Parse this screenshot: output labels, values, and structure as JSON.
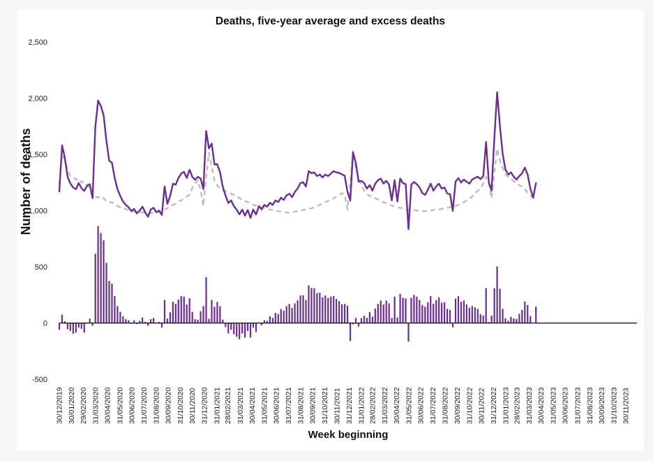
{
  "page": {
    "background_color": "#f5f5f5",
    "panel_color": "#ffffff"
  },
  "chart_data": {
    "type": "line+bar",
    "title": "Deaths, five-year average and excess deaths",
    "xlabel": "Week beginning",
    "ylabel": "Number of deaths",
    "ylim": [
      -500,
      2500
    ],
    "ytick_interval": 500,
    "ytick_labels": [
      "-500",
      "0",
      "500",
      "1,000",
      "1,500",
      "2,000",
      "2,500"
    ],
    "grid": false,
    "legend": "none",
    "axis_line_color": "#000000",
    "x_start_date": "30/12/2019",
    "x_end_label_date": "30/11/2023",
    "weeks_per_point": 1,
    "x_tick_labels": [
      "30/12/2019",
      "30/01/2020",
      "29/02/2020",
      "31/03/2020",
      "30/04/2020",
      "31/05/2020",
      "30/06/2020",
      "31/07/2020",
      "31/08/2020",
      "30/09/2020",
      "31/10/2020",
      "30/11/2020",
      "31/12/2020",
      "31/01/2021",
      "28/02/2021",
      "31/03/2021",
      "30/04/2021",
      "31/05/2021",
      "30/06/2021",
      "31/07/2021",
      "31/08/2021",
      "30/09/2021",
      "31/10/2021",
      "30/11/2021",
      "31/12/2021",
      "31/01/2022",
      "28/02/2022",
      "31/03/2022",
      "30/04/2022",
      "31/05/2022",
      "30/06/2022",
      "31/07/2022",
      "31/08/2022",
      "30/09/2022",
      "31/10/2022",
      "30/11/2022",
      "31/12/2022",
      "31/01/2023",
      "28/02/2023",
      "31/03/2023",
      "30/04/2023",
      "31/05/2023",
      "30/06/2023",
      "31/07/2023",
      "31/08/2023",
      "30/09/2023",
      "31/10/2023",
      "30/11/2023"
    ],
    "series": [
      {
        "name": "Deaths",
        "type": "line",
        "style": "solid",
        "color": "#6b2d8f",
        "values": [
          1170,
          1580,
          1470,
          1300,
          1240,
          1205,
          1190,
          1245,
          1200,
          1175,
          1220,
          1235,
          1110,
          1741,
          1978,
          1930,
          1845,
          1620,
          1445,
          1425,
          1290,
          1190,
          1130,
          1080,
          1050,
          1030,
          995,
          1015,
          975,
          1000,
          1035,
          985,
          945,
          1010,
          1025,
          985,
          1000,
          960,
          1215,
          1060,
          1130,
          1240,
          1230,
          1290,
          1330,
          1345,
          1290,
          1363,
          1300,
          1274,
          1300,
          1285,
          1192,
          1708,
          1553,
          1596,
          1410,
          1413,
          1340,
          1210,
          1133,
          1068,
          1090,
          1040,
          1009,
          966,
          1009,
          955,
          1005,
          935,
          1010,
          965,
          1040,
          1010,
          1050,
          1035,
          1070,
          1050,
          1090,
          1075,
          1115,
          1095,
          1135,
          1150,
          1120,
          1165,
          1196,
          1245,
          1252,
          1215,
          1351,
          1332,
          1339,
          1307,
          1320,
          1295,
          1320,
          1307,
          1330,
          1351,
          1340,
          1335,
          1322,
          1310,
          1165,
          1090,
          1518,
          1425,
          1258,
          1264,
          1245,
          1196,
          1227,
          1177,
          1239,
          1270,
          1285,
          1240,
          1265,
          1230,
          1090,
          1270,
          1080,
          1285,
          1245,
          1235,
          835,
          1230,
          1255,
          1235,
          1205,
          1155,
          1140,
          1185,
          1240,
          1177,
          1215,
          1239,
          1196,
          1205,
          1152,
          1146,
          997,
          1258,
          1289,
          1250,
          1276,
          1255,
          1240,
          1276,
          1290,
          1301,
          1280,
          1307,
          1611,
          1250,
          1177,
          1649,
          2052,
          1750,
          1506,
          1363,
          1320,
          1340,
          1301,
          1276,
          1307,
          1332,
          1382,
          1320,
          1196,
          1115,
          1245
        ]
      },
      {
        "name": "Five-year average",
        "type": "line",
        "style": "dashed",
        "color": "#bdbdbd",
        "values": [
          1230,
          1505,
          1455,
          1355,
          1310,
          1300,
          1275,
          1285,
          1250,
          1260,
          1225,
          1195,
          1135,
          1125,
          1115,
          1130,
          1110,
          1085,
          1070,
          1075,
          1050,
          1040,
          1030,
          1020,
          1015,
          1005,
          1000,
          990,
          985,
          980,
          985,
          975,
          970,
          975,
          980,
          985,
          990,
          1000,
          1010,
          1020,
          1035,
          1050,
          1060,
          1080,
          1090,
          1110,
          1125,
          1143,
          1200,
          1240,
          1270,
          1180,
          1040,
          1300,
          1515,
          1390,
          1265,
          1225,
          1190,
          1180,
          1170,
          1160,
          1150,
          1140,
          1130,
          1110,
          1100,
          1085,
          1075,
          1065,
          1050,
          1045,
          1035,
          1030,
          1025,
          1015,
          1010,
          1005,
          1000,
          995,
          990,
          985,
          985,
          980,
          985,
          990,
          995,
          1000,
          1005,
          1010,
          1015,
          1020,
          1030,
          1040,
          1050,
          1065,
          1075,
          1085,
          1095,
          1110,
          1125,
          1140,
          1155,
          1140,
          1010,
          1250,
          1530,
          1380,
          1290,
          1220,
          1180,
          1150,
          1130,
          1120,
          1110,
          1100,
          1085,
          1075,
          1065,
          1055,
          1045,
          1035,
          1030,
          1025,
          1020,
          1015,
          1000,
          1005,
          1005,
          1000,
          1000,
          995,
          995,
          1000,
          1000,
          1005,
          1010,
          1010,
          1015,
          1020,
          1025,
          1030,
          1035,
          1040,
          1050,
          1060,
          1075,
          1090,
          1105,
          1125,
          1150,
          1175,
          1200,
          1240,
          1300,
          1240,
          1110,
          1340,
          1549,
          1445,
          1380,
          1320,
          1300,
          1285,
          1260,
          1240,
          1225,
          1215,
          1190,
          1160,
          1135,
          1115,
          1100
        ]
      },
      {
        "name": "Excess deaths",
        "type": "bar",
        "color": "#6b2d8f",
        "values_derived_from": "Deaths minus Five-year average"
      }
    ]
  }
}
